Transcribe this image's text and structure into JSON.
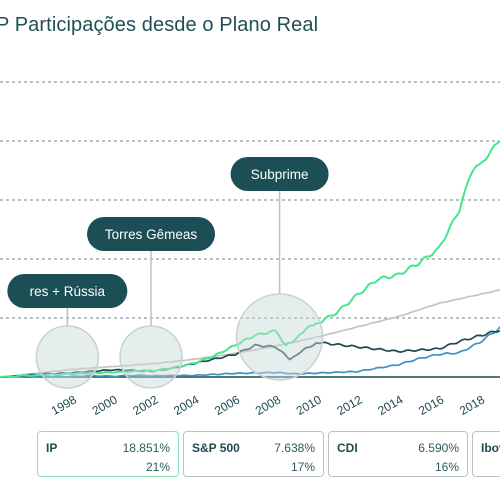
{
  "title": "P Participações desde o Plano Real",
  "chart_data": {
    "type": "line",
    "x_ticks": [
      "1998",
      "2000",
      "2002",
      "2004",
      "2006",
      "2008",
      "2010",
      "2012",
      "2014",
      "2016",
      "2018"
    ],
    "xlim": [
      1994.5,
      2019
    ],
    "ylim": [
      0,
      20
    ],
    "grid": true,
    "series": [
      {
        "name": "IP",
        "color": "#45e68c",
        "x": [
          1994.5,
          1996,
          1998,
          2000,
          2002,
          2003,
          2004,
          2005,
          2006,
          2007,
          2008,
          2008.5,
          2009,
          2009.5,
          2010,
          2011,
          2012,
          2013,
          2014,
          2015,
          2016,
          2017,
          2017.5,
          2018,
          2019
        ],
        "y": [
          0.0,
          0.1,
          0.2,
          0.3,
          0.4,
          0.6,
          0.9,
          1.4,
          2.1,
          2.8,
          3.1,
          2.2,
          2.6,
          3.2,
          3.6,
          4.4,
          5.6,
          6.7,
          7.0,
          7.8,
          8.8,
          11.4,
          13.6,
          14.4,
          16.2
        ]
      },
      {
        "name": "S&P 500",
        "color": "#3b93c6",
        "x": [
          1994.5,
          1998,
          2002,
          2004,
          2006,
          2008,
          2009,
          2010,
          2012,
          2014,
          2015,
          2016,
          2017,
          2018,
          2019
        ],
        "y": [
          0.0,
          0.05,
          0.1,
          0.12,
          0.25,
          0.3,
          0.2,
          0.25,
          0.35,
          0.8,
          1.2,
          1.5,
          1.6,
          2.3,
          3.3
        ]
      },
      {
        "name": "CDI",
        "color": "#c7c2c4",
        "x": [
          1994.5,
          1996,
          1998,
          2000,
          2002,
          2004,
          2006,
          2008,
          2010,
          2012,
          2014,
          2016,
          2018,
          2019
        ],
        "y": [
          0.0,
          0.2,
          0.5,
          0.7,
          0.9,
          1.2,
          1.6,
          2.1,
          2.7,
          3.4,
          4.1,
          5.0,
          5.6,
          5.9
        ]
      },
      {
        "name": "Ibovespa",
        "color": "#1c4a50",
        "x": [
          1994.5,
          1998,
          2000,
          2002,
          2003,
          2004,
          2006,
          2007,
          2008,
          2008.7,
          2009.5,
          2010,
          2012,
          2014,
          2016,
          2017,
          2018,
          2019
        ],
        "y": [
          0.0,
          0.3,
          0.5,
          0.4,
          0.6,
          0.9,
          1.5,
          2.1,
          2.0,
          1.2,
          1.9,
          2.3,
          2.0,
          1.7,
          1.9,
          2.4,
          2.8,
          3.2
        ]
      }
    ],
    "annotations": [
      {
        "label": "res + Rússia",
        "x": 1997.8
      },
      {
        "label": "Torres Gêmeas",
        "x": 2001.9
      },
      {
        "label": "Subprime",
        "x": 2008.2
      }
    ]
  },
  "cards": [
    {
      "name": "IP",
      "v1": "18.851%",
      "v2": "21%",
      "active": true
    },
    {
      "name": "S&P 500",
      "v1": "7.638%",
      "v2": "17%",
      "active": false
    },
    {
      "name": "CDI",
      "v1": "6.590%",
      "v2": "16%",
      "active": false
    },
    {
      "name": "Ibov",
      "v1": "",
      "v2": "",
      "active": false
    }
  ]
}
